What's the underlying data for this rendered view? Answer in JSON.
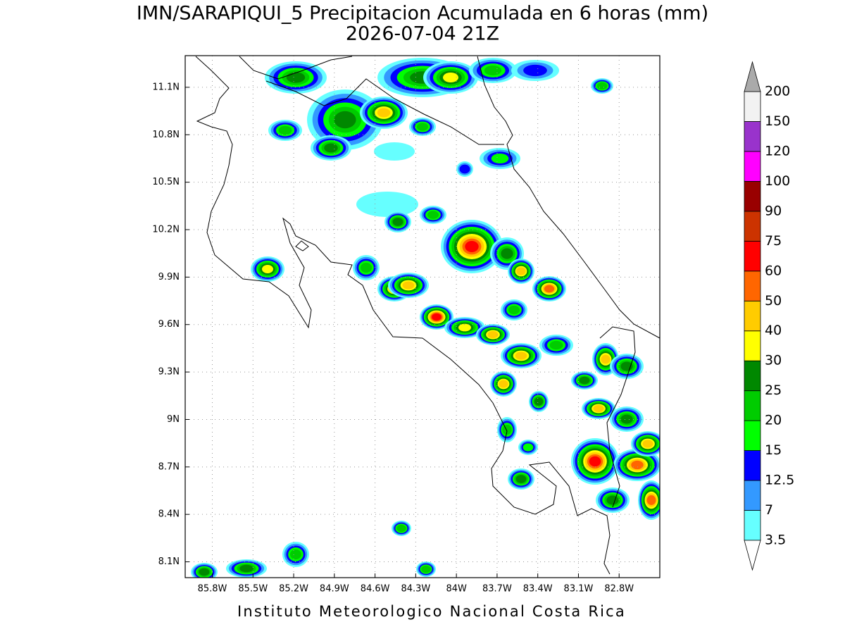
{
  "title": "IMN/SARAPIQUI_5 Precipitacion Acumulada en 6 horas (mm)",
  "subtitle": "2026-07-04 21Z",
  "footer": "Instituto Meteorologico Nacional Costa Rica",
  "map": {
    "xlim": [
      -86.0,
      -82.5
    ],
    "ylim": [
      8.0,
      11.3
    ],
    "grid": true,
    "xticks": [
      {
        "value": -85.8,
        "label": "85.8W"
      },
      {
        "value": -85.5,
        "label": "85.5W"
      },
      {
        "value": -85.2,
        "label": "85.2W"
      },
      {
        "value": -84.9,
        "label": "84.9W"
      },
      {
        "value": -84.6,
        "label": "84.6W"
      },
      {
        "value": -84.3,
        "label": "84.3W"
      },
      {
        "value": -84.0,
        "label": "84W"
      },
      {
        "value": -83.7,
        "label": "83.7W"
      },
      {
        "value": -83.4,
        "label": "83.4W"
      },
      {
        "value": -83.1,
        "label": "83.1W"
      },
      {
        "value": -82.8,
        "label": "82.8W"
      }
    ],
    "yticks": [
      {
        "value": 11.1,
        "label": "11.1N"
      },
      {
        "value": 10.8,
        "label": "10.8N"
      },
      {
        "value": 10.5,
        "label": "10.5N"
      },
      {
        "value": 10.2,
        "label": "10.2N"
      },
      {
        "value": 9.9,
        "label": "9.9N"
      },
      {
        "value": 9.6,
        "label": "9.6N"
      },
      {
        "value": 9.3,
        "label": "9.3N"
      },
      {
        "value": 9.0,
        "label": "9N"
      },
      {
        "value": 8.7,
        "label": "8.7N"
      },
      {
        "value": 8.4,
        "label": "8.4N"
      },
      {
        "value": 8.1,
        "label": "8.1N"
      }
    ]
  },
  "colorbar": {
    "levels": [
      3.5,
      7,
      12.5,
      15,
      20,
      25,
      30,
      40,
      50,
      60,
      75,
      90,
      100,
      120,
      150,
      200
    ],
    "colors": [
      "#ffffff",
      "#66ffff",
      "#3399ff",
      "#0000ff",
      "#00ff00",
      "#00cc00",
      "#008800",
      "#ffff00",
      "#ffcc00",
      "#ff6600",
      "#ff0000",
      "#cc3300",
      "#990000",
      "#ff00ff",
      "#9933cc",
      "#f2f2f2",
      "#aaaaaa"
    ]
  }
}
